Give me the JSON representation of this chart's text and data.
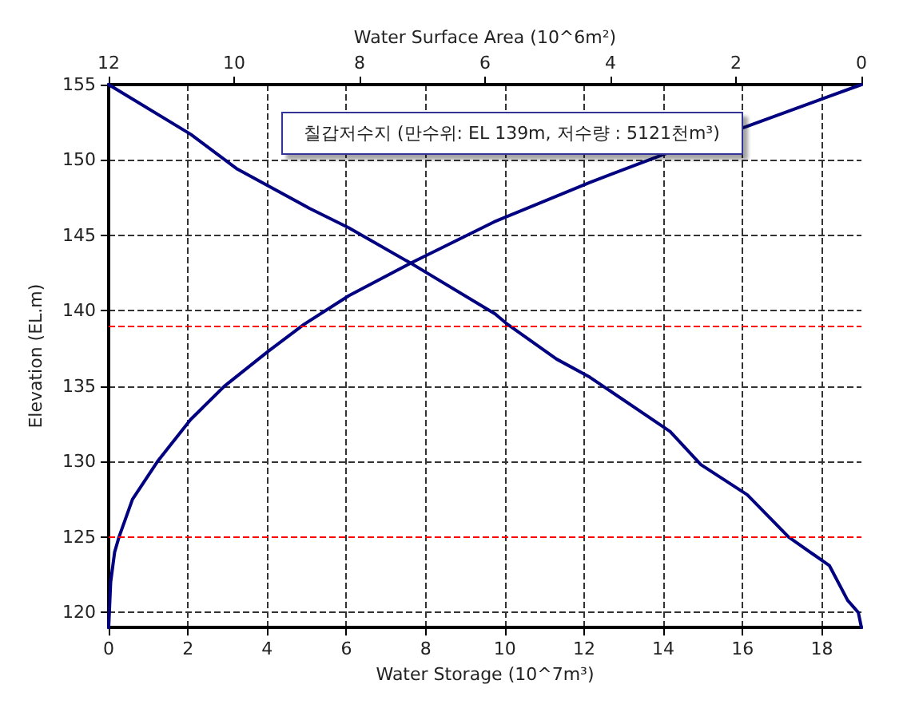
{
  "chart_data": {
    "type": "line",
    "xlabel": "Water Storage (10^7m³)",
    "x2label": "Water Surface Area (10^6m²)",
    "ylabel": "Elevation (EL.m)",
    "annotations": [
      "칠갑저수지 (만수위: EL 139m, 저수량 : 5121천m³)"
    ],
    "xlim": [
      0,
      19
    ],
    "xticks": [
      0,
      2,
      4,
      6,
      8,
      10,
      12,
      14,
      16,
      18
    ],
    "x2lim": [
      12,
      0
    ],
    "x2ticks": [
      12,
      10,
      8,
      6,
      4,
      2,
      0
    ],
    "ylim": [
      119,
      155
    ],
    "yticks": [
      120,
      125,
      130,
      135,
      140,
      145,
      150,
      155
    ],
    "grid": true,
    "marker": "none",
    "line_style": "solid",
    "ref_lines": [
      {
        "axis": "y",
        "value": 139,
        "color": "#ff0000",
        "line_style": "dashed"
      },
      {
        "axis": "y",
        "value": 125,
        "color": "#ff0000",
        "line_style": "dashed"
      }
    ],
    "series": [
      {
        "color": "#000080",
        "x": [
          0,
          0.05,
          0.15,
          0.26,
          0.6,
          1.23,
          2.07,
          2.92,
          4.02,
          4.93,
          6.06,
          7.65,
          9.73,
          12.13,
          14.13,
          16.08,
          18.16,
          19
        ],
        "values": [
          119,
          122,
          124,
          125,
          127.5,
          130,
          132.8,
          135,
          137.3,
          139.1,
          141,
          143.2,
          145.9,
          148.5,
          150.5,
          152.2,
          154.2,
          155
        ]
      },
      {
        "color": "#000080",
        "axis": "x2",
        "x": [
          12,
          10.69,
          9.95,
          8.8,
          8.17,
          7.16,
          5.84,
          5.64,
          4.86,
          4.33,
          3.05,
          2.56,
          1.82,
          1.16,
          0.51,
          0.22,
          0.05,
          0
        ],
        "values": [
          155,
          151.7,
          149.4,
          146.8,
          145.5,
          143.1,
          139.8,
          139.1,
          136.8,
          135.6,
          132,
          129.8,
          127.8,
          125,
          123.1,
          120.8,
          120,
          119
        ]
      }
    ]
  }
}
